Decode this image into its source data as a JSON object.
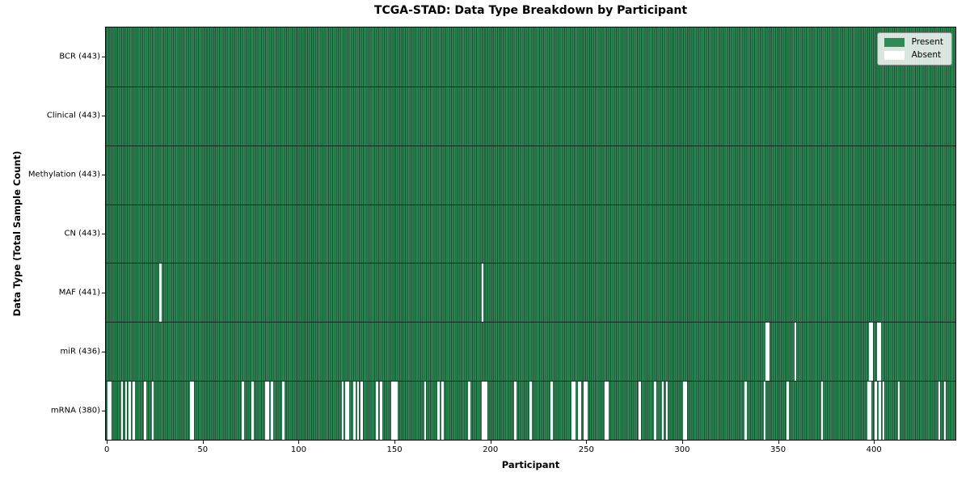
{
  "title": "TCGA-STAD: Data Type Breakdown by Participant",
  "chart_data": {
    "type": "heatmap",
    "title": "TCGA-STAD: Data Type Breakdown by Participant",
    "xlabel": "Participant",
    "ylabel": "Data Type (Total Sample Count)",
    "n_participants": 443,
    "x_ticks": [
      0,
      50,
      100,
      150,
      200,
      250,
      300,
      350,
      400
    ],
    "legend_position": "upper right",
    "legend": [
      {
        "label": "Present",
        "color": "#2e8b57"
      },
      {
        "label": "Absent",
        "color": "#ffffff"
      }
    ],
    "colors": {
      "present": "#2e8b57",
      "absent": "#ffffff",
      "cell_edge": "#1d4f33",
      "row_separator": "#0f2c1d",
      "spine": "#0e0e0e"
    },
    "rows": [
      {
        "label": "BCR (443)",
        "data_type": "BCR",
        "present_count": 443,
        "absent_participants": []
      },
      {
        "label": "Clinical (443)",
        "data_type": "Clinical",
        "present_count": 443,
        "absent_participants": []
      },
      {
        "label": "Methylation (443)",
        "data_type": "Methylation",
        "present_count": 443,
        "absent_participants": []
      },
      {
        "label": "CN (443)",
        "data_type": "CN",
        "present_count": 443,
        "absent_participants": []
      },
      {
        "label": "MAF (441)",
        "data_type": "MAF",
        "present_count": 441,
        "absent_participants": [
          28,
          196
        ]
      },
      {
        "label": "miR (436)",
        "data_type": "miR",
        "present_count": 436,
        "absent_participants": [
          344,
          345,
          359,
          398,
          399,
          402,
          403
        ]
      },
      {
        "label": "mRNA (380)",
        "data_type": "mRNA",
        "present_count": 380,
        "absent_participants": [
          1,
          2,
          8,
          10,
          12,
          14,
          20,
          24,
          44,
          45,
          71,
          76,
          83,
          84,
          86,
          92,
          123,
          125,
          126,
          129,
          131,
          133,
          141,
          143,
          149,
          150,
          151,
          166,
          173,
          175,
          189,
          196,
          197,
          198,
          213,
          221,
          232,
          243,
          244,
          246,
          247,
          249,
          250,
          260,
          261,
          278,
          286,
          290,
          292,
          301,
          302,
          333,
          343,
          355,
          373,
          397,
          398,
          401,
          403,
          405,
          413,
          434,
          437
        ]
      }
    ]
  }
}
